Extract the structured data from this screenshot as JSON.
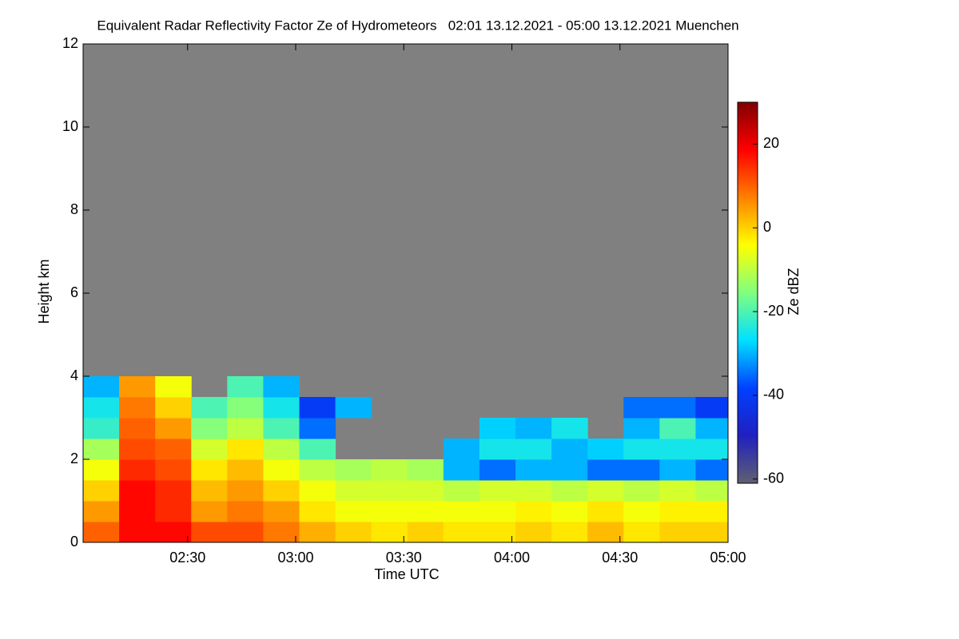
{
  "chart_data": {
    "type": "heatmap",
    "title": "Equivalent Radar Reflectivity Factor Ze of Hydrometeors   02:01 13.12.2021 - 05:00 13.12.2021 Muenchen",
    "xlabel": "Time UTC",
    "ylabel": "Height km",
    "colorbar_label": "Ze dBZ",
    "x_edges": [
      121,
      131,
      141,
      151,
      161,
      171,
      181,
      191,
      201,
      211,
      221,
      231,
      241,
      251,
      261,
      271,
      281,
      291,
      300
    ],
    "y_edges": [
      0,
      0.5,
      1,
      1.5,
      2,
      2.5,
      3,
      3.5,
      4
    ],
    "z": [
      [
        10,
        18,
        18,
        12,
        12,
        8,
        3,
        0,
        -2,
        0,
        -2,
        -2,
        0,
        -2,
        2,
        -2,
        0,
        0
      ],
      [
        5,
        18,
        15,
        5,
        8,
        5,
        -2,
        -5,
        -5,
        -5,
        -5,
        -5,
        -3,
        -5,
        -2,
        -5,
        -3,
        -3
      ],
      [
        0,
        18,
        15,
        2,
        5,
        0,
        -5,
        -8,
        -8,
        -8,
        -10,
        -8,
        -8,
        -10,
        -8,
        -10,
        -8,
        -10
      ],
      [
        -5,
        15,
        12,
        -2,
        2,
        -5,
        -10,
        -12,
        -10,
        -12,
        -30,
        -35,
        -30,
        -30,
        -35,
        -35,
        -30,
        -35
      ],
      [
        -12,
        12,
        10,
        -8,
        -2,
        -10,
        -20,
        null,
        null,
        null,
        -30,
        -25,
        -25,
        -30,
        -28,
        -25,
        -25,
        -25
      ],
      [
        -22,
        10,
        5,
        -15,
        -10,
        -20,
        -35,
        null,
        null,
        null,
        null,
        -28,
        -30,
        -25,
        null,
        -30,
        -20,
        -30
      ],
      [
        -25,
        8,
        0,
        -20,
        -15,
        -25,
        -40,
        -30,
        null,
        null,
        null,
        null,
        null,
        null,
        null,
        -35,
        -35,
        -40
      ],
      [
        -30,
        5,
        -5,
        null,
        -20,
        -30,
        null,
        null,
        null,
        null,
        null,
        null,
        null,
        null,
        null,
        null,
        null,
        null
      ]
    ],
    "xlim": [
      121,
      300
    ],
    "xticks": [
      {
        "value": 150,
        "label": "02:30"
      },
      {
        "value": 180,
        "label": "03:00"
      },
      {
        "value": 210,
        "label": "03:30"
      },
      {
        "value": 240,
        "label": "04:00"
      },
      {
        "value": 270,
        "label": "04:30"
      },
      {
        "value": 300,
        "label": "05:00"
      }
    ],
    "ylim": [
      0,
      12
    ],
    "yticks": [
      0,
      2,
      4,
      6,
      8,
      10,
      12
    ],
    "clim": [
      -61,
      30
    ],
    "cticks": [
      -60,
      -40,
      -20,
      0,
      20
    ],
    "colormap": [
      "#606070",
      "#2020c0",
      "#0040ff",
      "#00e0ff",
      "#80ff80",
      "#ffff00",
      "#ff8000",
      "#ff0000",
      "#800000"
    ],
    "background_color": "#808080"
  }
}
